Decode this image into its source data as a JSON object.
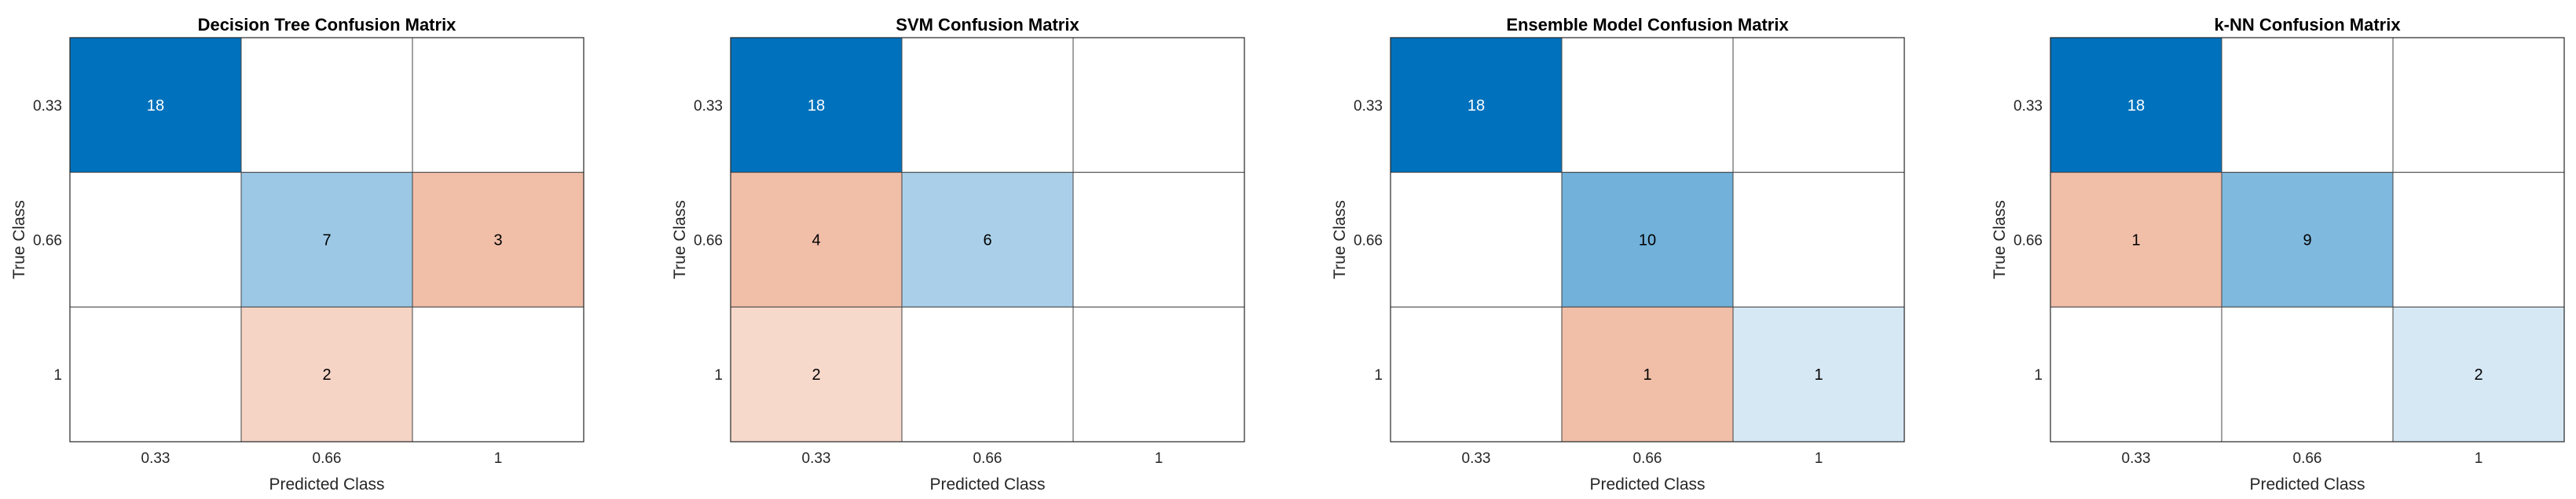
{
  "chart_data": [
    {
      "type": "heatmap",
      "title": "Decision Tree Confusion Matrix",
      "xlabel": "Predicted Class",
      "ylabel": "True Class",
      "x_categories": [
        "0.33",
        "0.66",
        "1"
      ],
      "y_categories": [
        "0.33",
        "0.66",
        "1"
      ],
      "matrix": [
        [
          18,
          0,
          0
        ],
        [
          0,
          7,
          3
        ],
        [
          0,
          2,
          0
        ]
      ]
    },
    {
      "type": "heatmap",
      "title": "SVM Confusion Matrix",
      "xlabel": "Predicted Class",
      "ylabel": "True Class",
      "x_categories": [
        "0.33",
        "0.66",
        "1"
      ],
      "y_categories": [
        "0.33",
        "0.66",
        "1"
      ],
      "matrix": [
        [
          18,
          0,
          0
        ],
        [
          4,
          6,
          0
        ],
        [
          2,
          0,
          0
        ]
      ]
    },
    {
      "type": "heatmap",
      "title": "Ensemble Model Confusion Matrix",
      "xlabel": "Predicted Class",
      "ylabel": "True Class",
      "x_categories": [
        "0.33",
        "0.66",
        "1"
      ],
      "y_categories": [
        "0.33",
        "0.66",
        "1"
      ],
      "matrix": [
        [
          18,
          0,
          0
        ],
        [
          0,
          10,
          0
        ],
        [
          0,
          1,
          1
        ]
      ]
    },
    {
      "type": "heatmap",
      "title": "k-NN Confusion Matrix",
      "xlabel": "Predicted Class",
      "ylabel": "True Class",
      "x_categories": [
        "0.33",
        "0.66",
        "1"
      ],
      "y_categories": [
        "0.33",
        "0.66",
        "1"
      ],
      "matrix": [
        [
          18,
          0,
          0
        ],
        [
          1,
          9,
          0
        ],
        [
          0,
          0,
          2
        ]
      ]
    }
  ],
  "colors": {
    "correct_max": "#0072bd",
    "incorrect_max": "#d95319",
    "light_text": "#ffffff",
    "dark_text": "#000000",
    "background": "#ffffff"
  }
}
